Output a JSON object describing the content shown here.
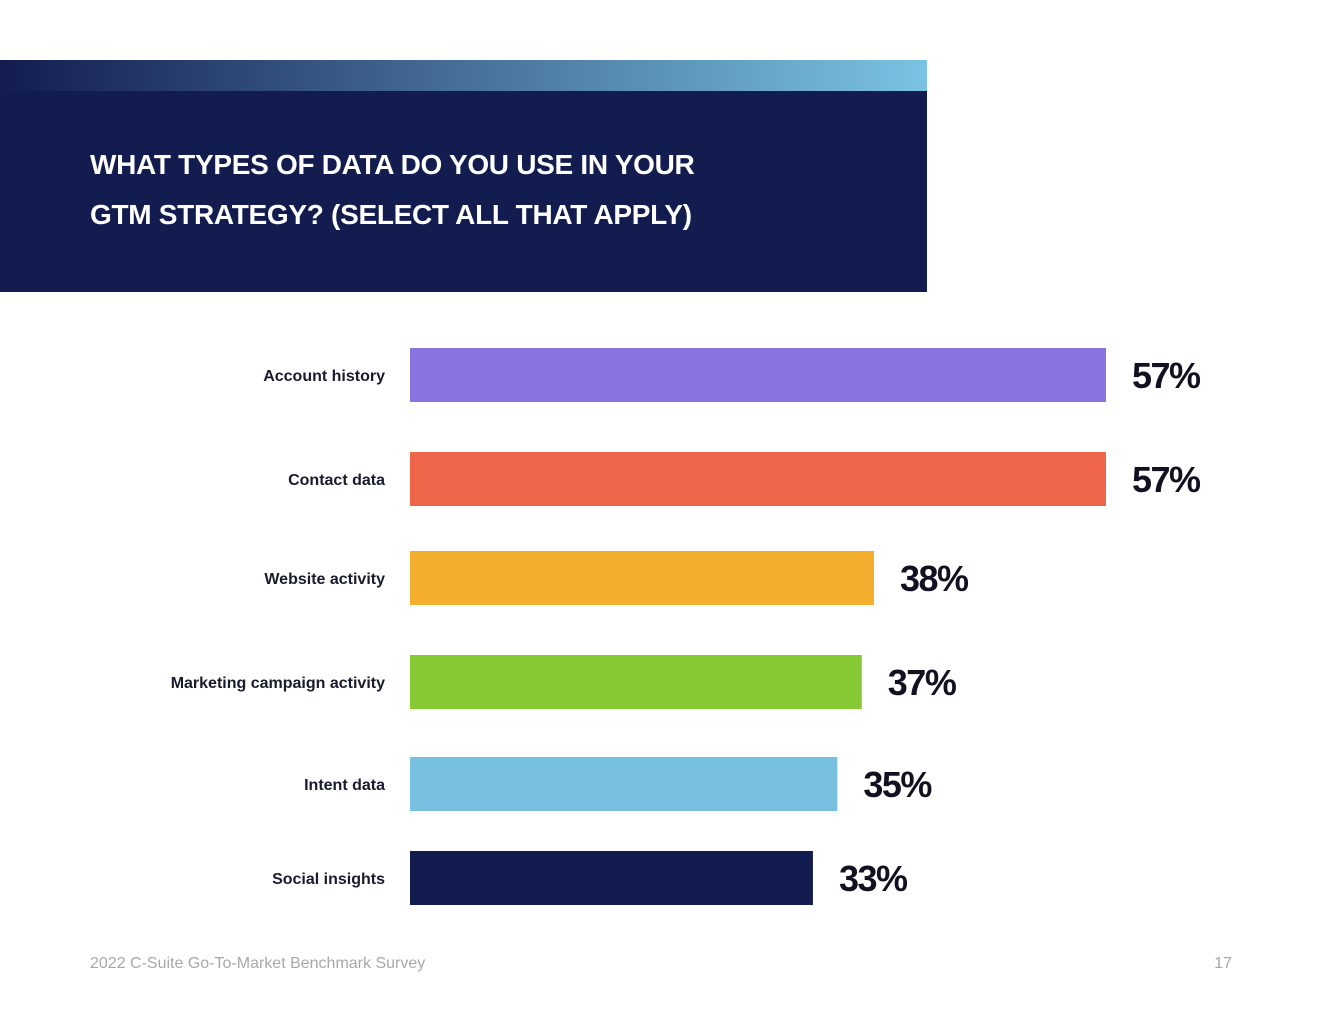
{
  "page": {
    "title_line1": "What types of data do you use in your",
    "title_line2": "GTM strategy? (Select all that apply)",
    "footer_text": "2022 C-Suite Go-To-Market Benchmark Survey",
    "page_number": "17"
  },
  "colors": {
    "header_bg": "#131c4f",
    "gradient_start": "#131c4f",
    "gradient_end": "#7ac3e3",
    "label_text": "#1a1a2e",
    "value_text": "#111122"
  },
  "chart_data": {
    "type": "bar",
    "orientation": "horizontal",
    "title": "What types of data do you use in your GTM strategy? (Select all that apply)",
    "categories": [
      "Account history",
      "Contact data",
      "Website activity",
      "Marketing campaign activity",
      "Intent data",
      "Social insights"
    ],
    "values": [
      57,
      57,
      38,
      37,
      35,
      33
    ],
    "value_labels": [
      "57%",
      "57%",
      "38%",
      "37%",
      "35%",
      "33%"
    ],
    "bar_colors": [
      "#8a73e0",
      "#ef654a",
      "#f3ae2e",
      "#87c935",
      "#78c0e0",
      "#131c4f"
    ],
    "unit": "%",
    "xlim": [
      0,
      57
    ],
    "grid": false,
    "legend": "none"
  }
}
